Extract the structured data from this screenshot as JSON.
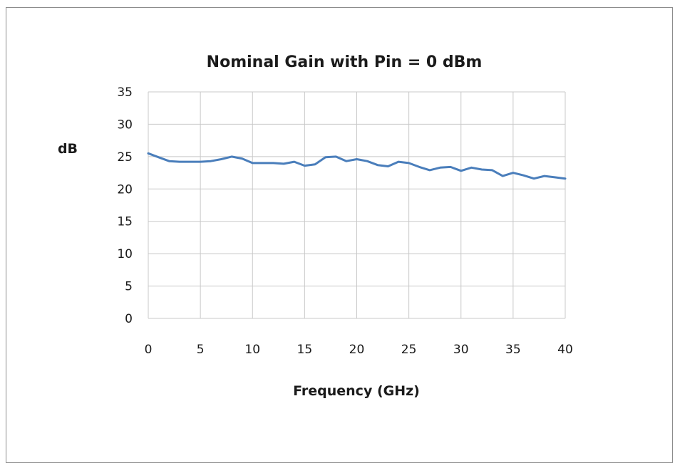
{
  "chart_data": {
    "type": "line",
    "title": "Nominal Gain with Pin = 0 dBm",
    "xlabel": "Frequency (GHz)",
    "ylabel": "dB",
    "xlim": [
      0,
      40
    ],
    "ylim": [
      0,
      35
    ],
    "xticks": [
      0,
      5,
      10,
      15,
      20,
      25,
      30,
      35,
      40
    ],
    "yticks": [
      0,
      5,
      10,
      15,
      20,
      25,
      30,
      35
    ],
    "grid": true,
    "legend": "none",
    "series": [
      {
        "color": "#4a7ebb",
        "x": [
          0,
          1,
          2,
          3,
          4,
          5,
          6,
          7,
          8,
          9,
          10,
          11,
          12,
          13,
          14,
          15,
          16,
          17,
          18,
          19,
          20,
          21,
          22,
          23,
          24,
          25,
          26,
          27,
          28,
          29,
          30,
          31,
          32,
          33,
          34,
          35,
          36,
          37,
          38,
          39,
          40
        ],
        "y": [
          25.5,
          24.9,
          24.3,
          24.2,
          24.2,
          24.2,
          24.3,
          24.6,
          25.0,
          24.7,
          24.0,
          24.0,
          24.0,
          23.9,
          24.2,
          23.6,
          23.8,
          24.9,
          25.0,
          24.3,
          24.6,
          24.3,
          23.7,
          23.5,
          24.2,
          24.0,
          23.4,
          22.9,
          23.3,
          23.4,
          22.8,
          23.3,
          23.0,
          22.9,
          22.0,
          22.5,
          22.1,
          21.6,
          22.0,
          21.8,
          21.6
        ]
      }
    ]
  }
}
